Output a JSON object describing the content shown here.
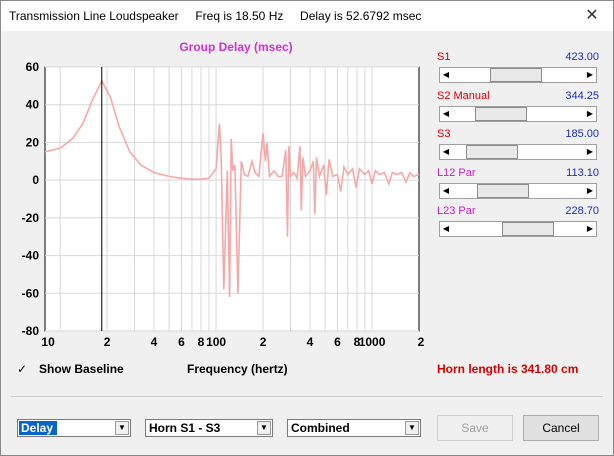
{
  "window": {
    "title": "Transmission Line Loudspeaker     Freq is 18.50 Hz     Delay is 52.6792 msec",
    "close_glyph": "✕"
  },
  "chart_data": {
    "type": "line",
    "title": "Group Delay (msec)",
    "xlabel": "Frequency (hertz)",
    "ylabel": "",
    "x_scale": "log",
    "xlim": [
      8,
      2000
    ],
    "ylim": [
      -80,
      60
    ],
    "y_ticks": [
      60,
      40,
      20,
      0,
      -20,
      -40,
      -60,
      -80
    ],
    "x_tick_labels": [
      {
        "x": 10,
        "label": "10"
      },
      {
        "x": 20,
        "label": "2"
      },
      {
        "x": 40,
        "label": "4"
      },
      {
        "x": 60,
        "label": "6"
      },
      {
        "x": 80,
        "label": "8"
      },
      {
        "x": 100,
        "label": "100"
      },
      {
        "x": 200,
        "label": "2"
      },
      {
        "x": 400,
        "label": "4"
      },
      {
        "x": 600,
        "label": "6"
      },
      {
        "x": 800,
        "label": "8"
      },
      {
        "x": 1000,
        "label": "1000"
      },
      {
        "x": 2000,
        "label": "2"
      }
    ],
    "grid": true,
    "cursor_x": 18.5,
    "series_color": "#f4a8a8",
    "title_color": "#cc33cc",
    "series": [
      {
        "points": [
          [
            8,
            15
          ],
          [
            10,
            17
          ],
          [
            12,
            22
          ],
          [
            14,
            30
          ],
          [
            16,
            42
          ],
          [
            18.5,
            52.7
          ],
          [
            21,
            44
          ],
          [
            24,
            28
          ],
          [
            28,
            15
          ],
          [
            33,
            8
          ],
          [
            40,
            4
          ],
          [
            50,
            2
          ],
          [
            60,
            1
          ],
          [
            70,
            0.5
          ],
          [
            80,
            0.5
          ],
          [
            90,
            1
          ],
          [
            100,
            6
          ],
          [
            105,
            30
          ],
          [
            108,
            10
          ],
          [
            112,
            -58
          ],
          [
            118,
            5
          ],
          [
            122,
            -62
          ],
          [
            125,
            22
          ],
          [
            128,
            5
          ],
          [
            132,
            8
          ],
          [
            138,
            -60
          ],
          [
            145,
            10
          ],
          [
            152,
            3
          ],
          [
            160,
            2
          ],
          [
            170,
            10
          ],
          [
            178,
            4
          ],
          [
            188,
            2
          ],
          [
            200,
            25
          ],
          [
            207,
            10
          ],
          [
            212,
            20
          ],
          [
            220,
            2
          ],
          [
            235,
            5
          ],
          [
            250,
            2
          ],
          [
            265,
            2
          ],
          [
            280,
            16
          ],
          [
            287,
            -30
          ],
          [
            293,
            18
          ],
          [
            300,
            2
          ],
          [
            315,
            4
          ],
          [
            330,
            1
          ],
          [
            345,
            18
          ],
          [
            352,
            -16
          ],
          [
            360,
            12
          ],
          [
            375,
            2
          ],
          [
            400,
            5
          ],
          [
            420,
            10
          ],
          [
            430,
            -18
          ],
          [
            440,
            12
          ],
          [
            460,
            2
          ],
          [
            490,
            8
          ],
          [
            510,
            -8
          ],
          [
            530,
            11
          ],
          [
            560,
            2
          ],
          [
            600,
            3
          ],
          [
            630,
            -6
          ],
          [
            660,
            7
          ],
          [
            700,
            3
          ],
          [
            750,
            6
          ],
          [
            790,
            -4
          ],
          [
            830,
            6
          ],
          [
            900,
            3
          ],
          [
            950,
            5
          ],
          [
            1000,
            -2
          ],
          [
            1050,
            5
          ],
          [
            1120,
            3
          ],
          [
            1200,
            4
          ],
          [
            1280,
            -2
          ],
          [
            1350,
            4
          ],
          [
            1450,
            3
          ],
          [
            1550,
            4
          ],
          [
            1650,
            -1
          ],
          [
            1750,
            4
          ],
          [
            1850,
            2
          ],
          [
            2000,
            3
          ]
        ]
      }
    ]
  },
  "sliders": [
    {
      "label": "S1",
      "value": "423.00",
      "label_color": "#d40000",
      "position": 0.47
    },
    {
      "label": "S2  Manual",
      "value": "344.25",
      "label_color": "#d40000",
      "position": 0.29
    },
    {
      "label": "S3",
      "value": "185.00",
      "label_color": "#d40000",
      "position": 0.18
    },
    {
      "label": "L12  Par",
      "value": "113.10",
      "label_color": "#c020c0",
      "position": 0.31
    },
    {
      "label": "L23  Par",
      "value": "228.70",
      "label_color": "#c020c0",
      "position": 0.62
    }
  ],
  "show_baseline": {
    "label": "Show Baseline",
    "checked_glyph": "✓"
  },
  "x_axis_label": "Frequency (hertz)",
  "horn_length": "Horn length is 341.80 cm",
  "combos": [
    {
      "value": "Delay",
      "arrow": "▼"
    },
    {
      "value": "Horn S1 - S3",
      "arrow": "▼"
    },
    {
      "value": "Combined",
      "arrow": "▼"
    }
  ],
  "buttons": {
    "save": "Save",
    "cancel": "Cancel"
  },
  "icons": {
    "arrow_left": "◀",
    "arrow_right": "▶"
  }
}
